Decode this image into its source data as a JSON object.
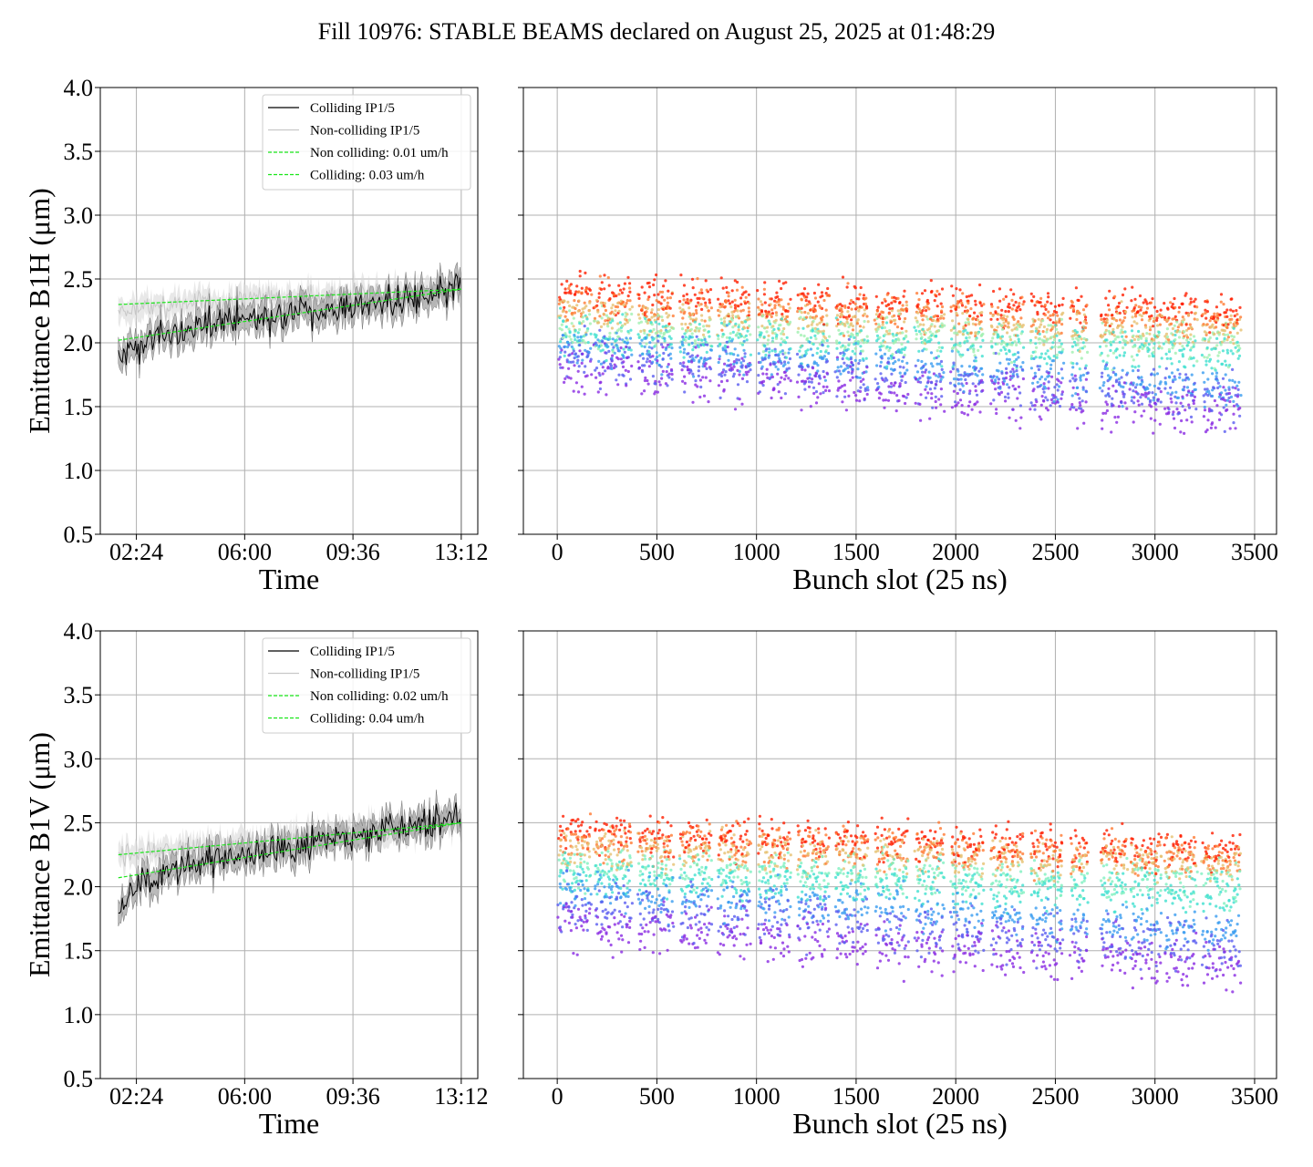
{
  "title": "Fill 10976: STABLE BEAMS declared on August 25, 2025 at 01:48:29",
  "colors": {
    "colliding": "#000000",
    "non_colliding": "#c8c8c8",
    "band": "#9e9e9e",
    "fit": "#19e619",
    "grid": "#b0b0b0"
  },
  "chart_data": [
    {
      "type": "line",
      "panel": "B1H-time",
      "xlabel": "Time",
      "ylabel": "Emittance B1H (μm)",
      "ylim": [
        0.5,
        4.0
      ],
      "yticks": [
        "0.5",
        "1.0",
        "1.5",
        "2.0",
        "2.5",
        "3.0",
        "3.5",
        "4.0"
      ],
      "xticks": [
        "02:24",
        "06:00",
        "09:36",
        "13:12"
      ],
      "xlim": [
        "01:12",
        "13:45"
      ],
      "grid": true,
      "legend_position": "upper-right",
      "legend": [
        "Colliding IP1/5",
        "Non-colliding IP1/5",
        "Non colliding: 0.01 um/h",
        "Colliding: 0.03 um/h"
      ],
      "series": [
        {
          "name": "Colliding IP1/5",
          "x": [
            "01:48",
            "02:24",
            "03:00",
            "03:36",
            "04:12",
            "04:48",
            "05:24",
            "06:00",
            "06:36",
            "07:12",
            "07:48",
            "08:24",
            "09:00",
            "09:36",
            "10:12",
            "10:48",
            "11:24",
            "12:00",
            "12:36",
            "13:12"
          ],
          "y": [
            1.88,
            1.98,
            2.03,
            2.07,
            2.1,
            2.15,
            2.17,
            2.2,
            2.21,
            2.23,
            2.24,
            2.25,
            2.26,
            2.29,
            2.31,
            2.32,
            2.33,
            2.35,
            2.38,
            2.45
          ]
        },
        {
          "name": "Non-colliding IP1/5",
          "x": [
            "01:48",
            "03:00",
            "04:12",
            "05:24",
            "06:36",
            "07:48",
            "09:00",
            "10:12",
            "11:24",
            "12:36",
            "13:12"
          ],
          "y": [
            2.22,
            2.28,
            2.31,
            2.33,
            2.34,
            2.35,
            2.36,
            2.37,
            2.38,
            2.4,
            2.42
          ]
        },
        {
          "name": "Non colliding: 0.01 um/h",
          "x": [
            "01:48",
            "13:12"
          ],
          "y": [
            2.3,
            2.42
          ]
        },
        {
          "name": "Colliding: 0.03 um/h",
          "x": [
            "01:48",
            "13:12"
          ],
          "y": [
            2.02,
            2.42
          ]
        }
      ]
    },
    {
      "type": "scatter",
      "panel": "B1H-slot",
      "xlabel": "Bunch slot (25 ns)",
      "xticks": [
        "0",
        "500",
        "1000",
        "1500",
        "2000",
        "2500",
        "3000",
        "3500"
      ],
      "xlim": [
        -170,
        3610
      ],
      "ylim": [
        0.5,
        4.0
      ],
      "grid": true,
      "trains_start": [
        10,
        190,
        410,
        620,
        810,
        1010,
        1210,
        1400,
        1600,
        1800,
        1980,
        2180,
        2380,
        2580,
        2730,
        2880,
        3050,
        3240
      ],
      "trains_end": [
        170,
        370,
        580,
        770,
        970,
        1170,
        1360,
        1560,
        1760,
        1940,
        2140,
        2340,
        2540,
        2660,
        2860,
        3030,
        3210,
        3430
      ],
      "color_levels": [
        {
          "color": "#ff1e00",
          "y": 2.38
        },
        {
          "color": "#ff7a33",
          "y": 2.3
        },
        {
          "color": "#e6c070",
          "y": 2.22
        },
        {
          "color": "#a0f0b0",
          "y": 2.12
        },
        {
          "color": "#40e0d0",
          "y": 2.06
        },
        {
          "color": "#3a9cf0",
          "y": 1.98
        },
        {
          "color": "#5a5cf0",
          "y": 1.9
        },
        {
          "color": "#8a2be2",
          "y": 1.8
        }
      ],
      "spread": 0.13
    },
    {
      "type": "line",
      "panel": "B1V-time",
      "xlabel": "Time",
      "ylabel": "Emittance B1V (μm)",
      "ylim": [
        0.5,
        4.0
      ],
      "yticks": [
        "0.5",
        "1.0",
        "1.5",
        "2.0",
        "2.5",
        "3.0",
        "3.5",
        "4.0"
      ],
      "xticks": [
        "02:24",
        "06:00",
        "09:36",
        "13:12"
      ],
      "xlim": [
        "01:12",
        "13:45"
      ],
      "grid": true,
      "legend_position": "upper-right",
      "legend": [
        "Colliding IP1/5",
        "Non-colliding IP1/5",
        "Non colliding: 0.02 um/h",
        "Colliding: 0.04 um/h"
      ],
      "series": [
        {
          "name": "Colliding IP1/5",
          "x": [
            "01:48",
            "02:24",
            "03:00",
            "03:36",
            "04:12",
            "04:48",
            "05:24",
            "06:00",
            "06:36",
            "07:12",
            "07:48",
            "08:24",
            "09:00",
            "09:36",
            "10:12",
            "10:48",
            "11:24",
            "12:00",
            "12:36",
            "13:12"
          ],
          "y": [
            1.8,
            2.02,
            2.08,
            2.12,
            2.16,
            2.19,
            2.21,
            2.24,
            2.26,
            2.28,
            2.32,
            2.35,
            2.36,
            2.39,
            2.41,
            2.44,
            2.46,
            2.49,
            2.53,
            2.56
          ]
        },
        {
          "name": "Non-colliding IP1/5",
          "x": [
            "01:48",
            "03:00",
            "04:12",
            "05:24",
            "06:36",
            "07:48",
            "09:00",
            "10:12",
            "11:24",
            "12:36",
            "13:12"
          ],
          "y": [
            2.24,
            2.28,
            2.31,
            2.33,
            2.35,
            2.38,
            2.41,
            2.43,
            2.46,
            2.49,
            2.51
          ]
        },
        {
          "name": "Non colliding: 0.02 um/h",
          "x": [
            "01:48",
            "13:12"
          ],
          "y": [
            2.25,
            2.5
          ]
        },
        {
          "name": "Colliding: 0.04 um/h",
          "x": [
            "01:48",
            "13:12"
          ],
          "y": [
            2.07,
            2.5
          ]
        }
      ]
    },
    {
      "type": "scatter",
      "panel": "B1V-slot",
      "xlabel": "Bunch slot (25 ns)",
      "xticks": [
        "0",
        "500",
        "1000",
        "1500",
        "2000",
        "2500",
        "3000",
        "3500"
      ],
      "xlim": [
        -170,
        3610
      ],
      "ylim": [
        0.5,
        4.0
      ],
      "grid": true,
      "trains_start": [
        10,
        190,
        410,
        620,
        810,
        1010,
        1210,
        1400,
        1600,
        1800,
        1980,
        2180,
        2380,
        2580,
        2730,
        2880,
        3050,
        3240
      ],
      "trains_end": [
        170,
        370,
        580,
        770,
        970,
        1170,
        1360,
        1560,
        1760,
        1940,
        2140,
        2340,
        2540,
        2660,
        2860,
        3030,
        3210,
        3430
      ],
      "color_levels": [
        {
          "color": "#ff1e00",
          "y": 2.42
        },
        {
          "color": "#ff7a33",
          "y": 2.36
        },
        {
          "color": "#e6c070",
          "y": 2.3
        },
        {
          "color": "#80f0c0",
          "y": 2.16
        },
        {
          "color": "#40e0d0",
          "y": 2.08
        },
        {
          "color": "#3a9cf0",
          "y": 1.98
        },
        {
          "color": "#5a5cf0",
          "y": 1.86
        },
        {
          "color": "#8a2be2",
          "y": 1.7
        }
      ],
      "spread": 0.13
    }
  ]
}
